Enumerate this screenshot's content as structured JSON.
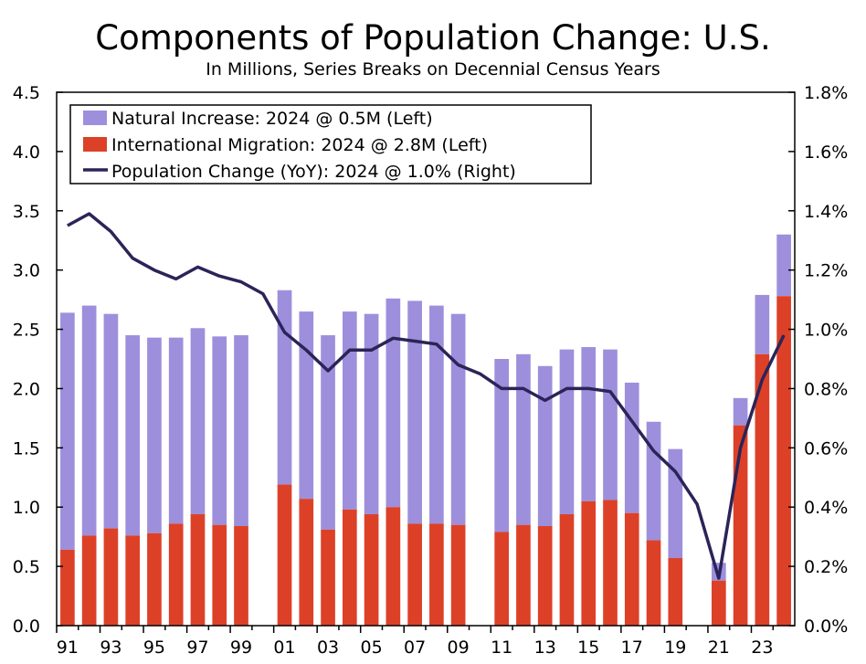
{
  "title": "Components of Population Change: U.S.",
  "subtitle": "In Millions, Series Breaks on Decennial Census Years",
  "colors": {
    "natural": "#9e8fdc",
    "migration": "#dc4128",
    "line": "#2b2458"
  },
  "legend": {
    "natural": "Natural Increase: 2024 @ 0.5M (Left)",
    "migration": "International Migration: 2024 @ 2.8M (Left)",
    "population": "Population Change (YoY): 2024 @ 1.0% (Right)"
  },
  "chart_data": {
    "type": "bar",
    "stacked": true,
    "years": [
      1991,
      1992,
      1993,
      1994,
      1995,
      1996,
      1997,
      1998,
      1999,
      2000,
      2001,
      2002,
      2003,
      2004,
      2005,
      2006,
      2007,
      2008,
      2009,
      2010,
      2011,
      2012,
      2013,
      2014,
      2015,
      2016,
      2017,
      2018,
      2019,
      2020,
      2021,
      2022,
      2023,
      2024
    ],
    "x_tick_labels": [
      "91",
      "93",
      "95",
      "97",
      "99",
      "01",
      "03",
      "05",
      "07",
      "09",
      "11",
      "13",
      "15",
      "17",
      "19",
      "21",
      "23"
    ],
    "left_axis": {
      "ticks": [
        "0.0",
        "0.5",
        "1.0",
        "1.5",
        "2.0",
        "2.5",
        "3.0",
        "3.5",
        "4.0",
        "4.5"
      ],
      "ylim": [
        0,
        4.5
      ]
    },
    "right_axis": {
      "ticks": [
        "0.0%",
        "0.2%",
        "0.4%",
        "0.6%",
        "0.8%",
        "1.0%",
        "1.2%",
        "1.4%",
        "1.6%",
        "1.8%"
      ],
      "ylim": [
        0,
        1.8
      ]
    },
    "series": [
      {
        "name": "International Migration",
        "axis": "left",
        "kind": "bar",
        "values": [
          0.64,
          0.76,
          0.82,
          0.76,
          0.78,
          0.86,
          0.94,
          0.85,
          0.84,
          null,
          1.19,
          1.07,
          0.81,
          0.98,
          0.94,
          1.0,
          0.86,
          0.86,
          0.85,
          null,
          0.79,
          0.85,
          0.84,
          0.94,
          1.05,
          1.06,
          0.95,
          0.72,
          0.57,
          null,
          0.38,
          1.69,
          2.29,
          2.78
        ]
      },
      {
        "name": "Natural Increase",
        "axis": "left",
        "kind": "bar",
        "values": [
          2.0,
          1.94,
          1.81,
          1.69,
          1.65,
          1.57,
          1.57,
          1.59,
          1.61,
          null,
          1.64,
          1.58,
          1.64,
          1.67,
          1.69,
          1.76,
          1.88,
          1.84,
          1.78,
          null,
          1.46,
          1.44,
          1.35,
          1.39,
          1.3,
          1.27,
          1.1,
          1.0,
          0.92,
          null,
          0.15,
          0.23,
          0.5,
          0.52
        ]
      },
      {
        "name": "Population Change (YoY)",
        "axis": "right",
        "kind": "line",
        "values": [
          1.35,
          1.39,
          1.33,
          1.24,
          1.2,
          1.17,
          1.21,
          1.18,
          1.16,
          1.12,
          0.99,
          0.93,
          0.86,
          0.93,
          0.93,
          0.97,
          0.96,
          0.95,
          0.88,
          0.85,
          0.8,
          0.8,
          0.76,
          0.8,
          0.8,
          0.79,
          0.69,
          0.59,
          0.52,
          0.41,
          0.16,
          0.6,
          0.83,
          0.98
        ]
      }
    ]
  }
}
